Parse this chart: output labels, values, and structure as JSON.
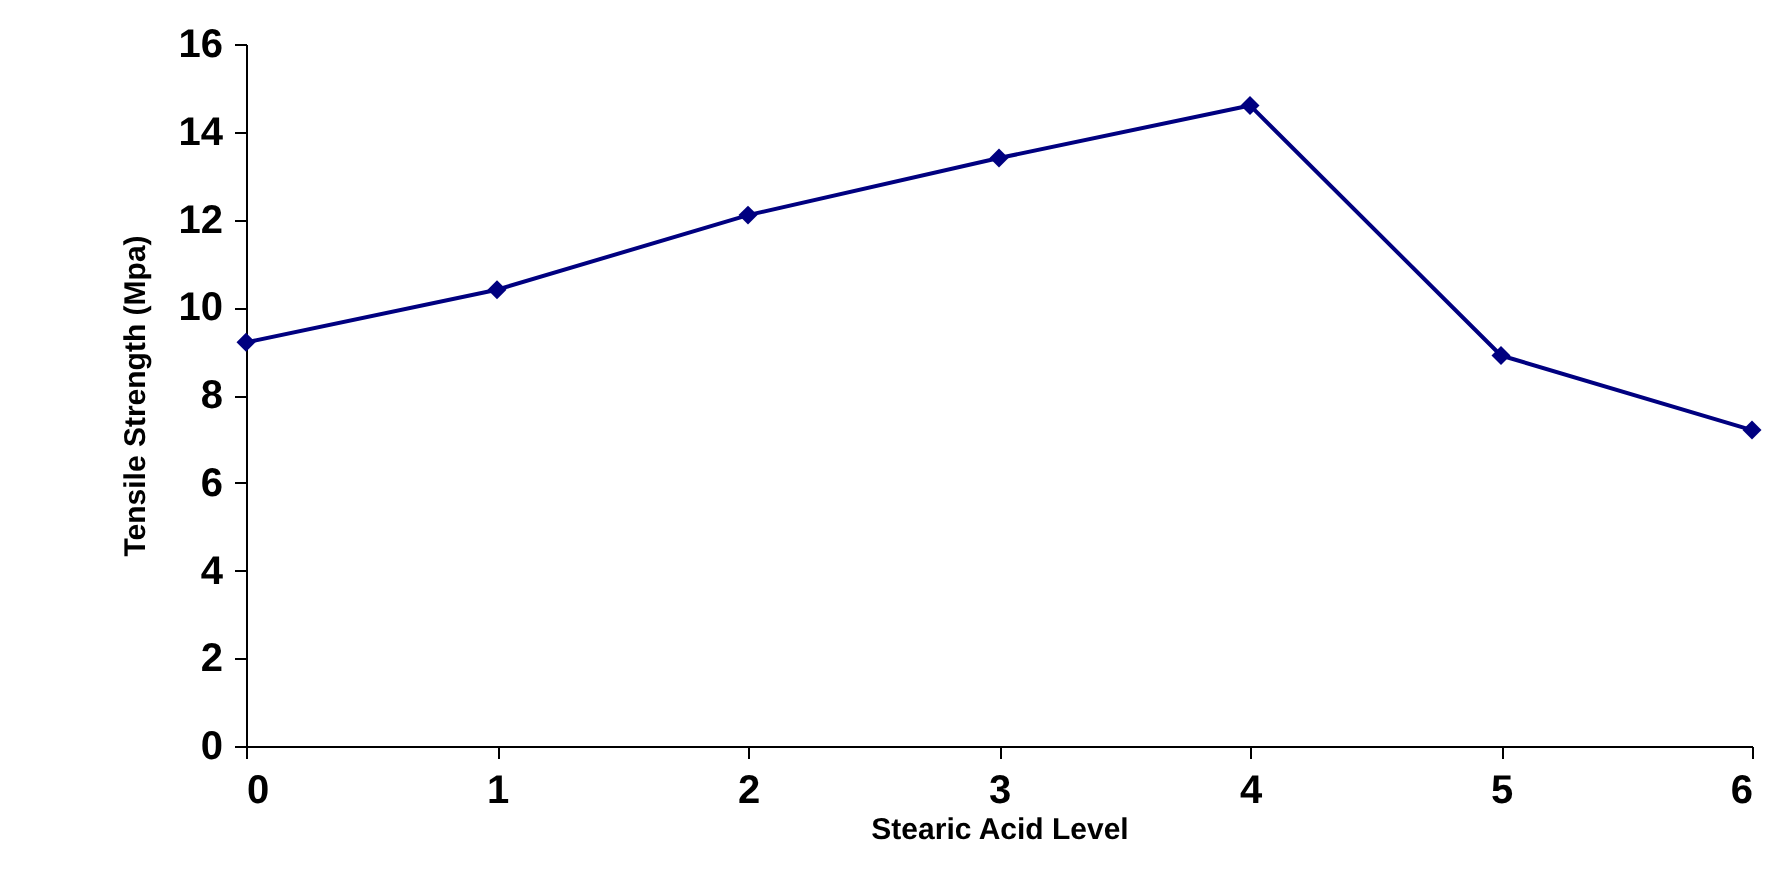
{
  "chart_data": {
    "type": "line",
    "xlabel": "Stearic Acid Level",
    "ylabel": "Tensile Strength (Mpa)",
    "x": [
      0,
      1,
      2,
      3,
      4,
      5,
      6
    ],
    "series": [
      {
        "color": "#000080",
        "values": [
          9.2,
          10.4,
          12.1,
          13.4,
          14.6,
          8.9,
          7.2
        ]
      }
    ],
    "xlim": [
      0,
      6
    ],
    "xticks": [
      0,
      1,
      2,
      3,
      4,
      5,
      6
    ],
    "ylim": [
      0,
      16
    ],
    "yticks": [
      0,
      2,
      4,
      6,
      8,
      10,
      12,
      14,
      16
    ],
    "grid": false,
    "marker": "diamond",
    "line_style": "solid"
  }
}
